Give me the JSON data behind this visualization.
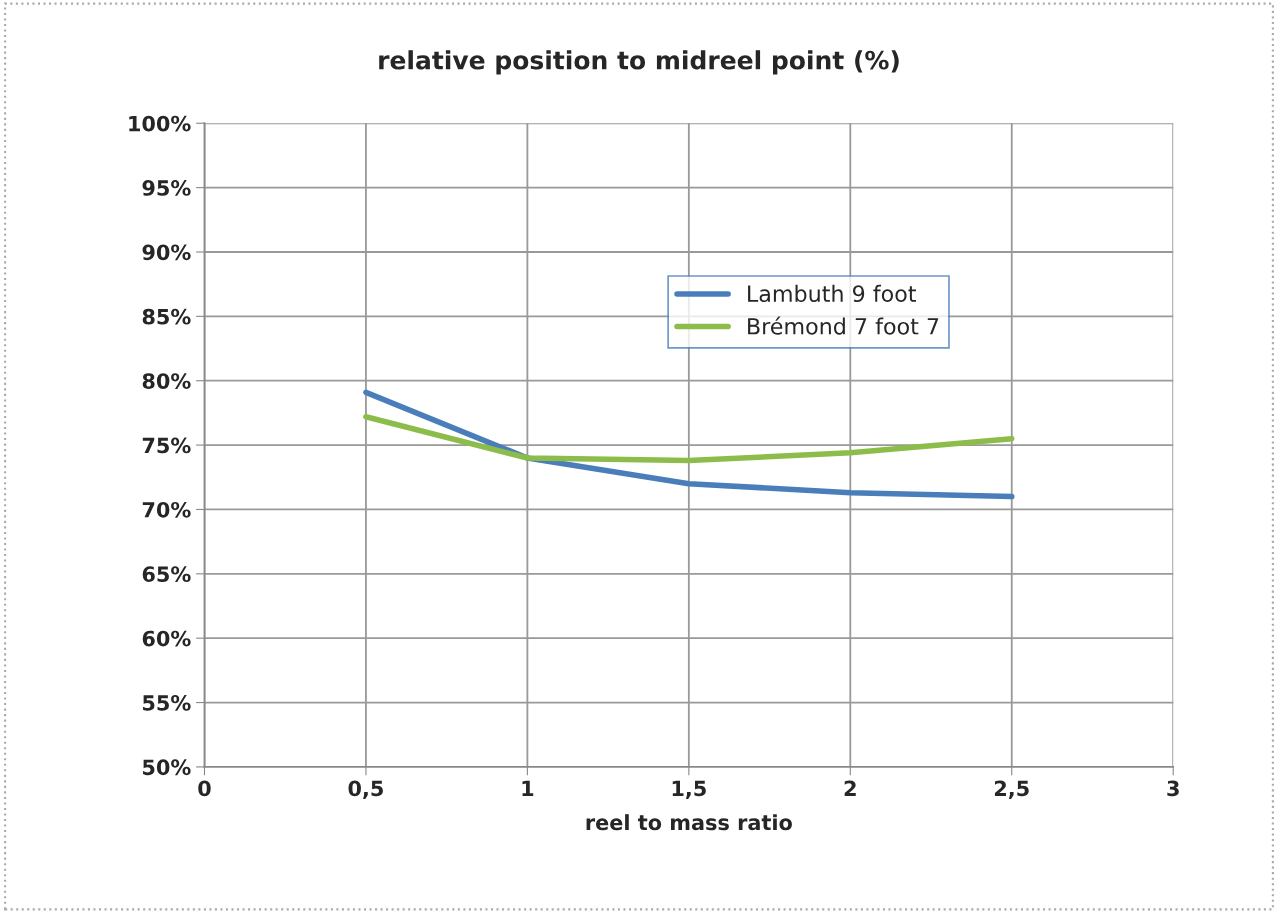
{
  "chart_data": {
    "type": "line",
    "title": "relative position to midreel point (%)",
    "xlabel": "reel to mass ratio",
    "x": [
      0.5,
      1,
      1.5,
      2,
      2.5
    ],
    "series": [
      {
        "name": "Lambuth 9 foot",
        "color": "#4a7ebb",
        "values": [
          79.1,
          74.0,
          72.0,
          71.3,
          71.0
        ]
      },
      {
        "name": "Brémond 7 foot 7",
        "color": "#8cbd4a",
        "values": [
          77.2,
          74.0,
          73.8,
          74.4,
          75.5
        ]
      }
    ],
    "xlim": [
      0,
      3
    ],
    "xticks": [
      0,
      {
        "value": 0.5,
        "label": "0,5"
      },
      1,
      {
        "value": 1.5,
        "label": "1,5"
      },
      2,
      {
        "value": 2.5,
        "label": "2,5"
      },
      3
    ],
    "ylim": [
      50,
      100
    ],
    "yticks": [
      {
        "value": 50,
        "label": "50%"
      },
      {
        "value": 55,
        "label": "55%"
      },
      {
        "value": 60,
        "label": "60%"
      },
      {
        "value": 65,
        "label": "65%"
      },
      {
        "value": 70,
        "label": "70%"
      },
      {
        "value": 75,
        "label": "75%"
      },
      {
        "value": 80,
        "label": "80%"
      },
      {
        "value": 85,
        "label": "85%"
      },
      {
        "value": 90,
        "label": "90%"
      },
      {
        "value": 95,
        "label": "95%"
      },
      {
        "value": 100,
        "label": "100%"
      }
    ],
    "grid": true,
    "legend": "top right",
    "marker": "none",
    "line_style": "solid"
  }
}
